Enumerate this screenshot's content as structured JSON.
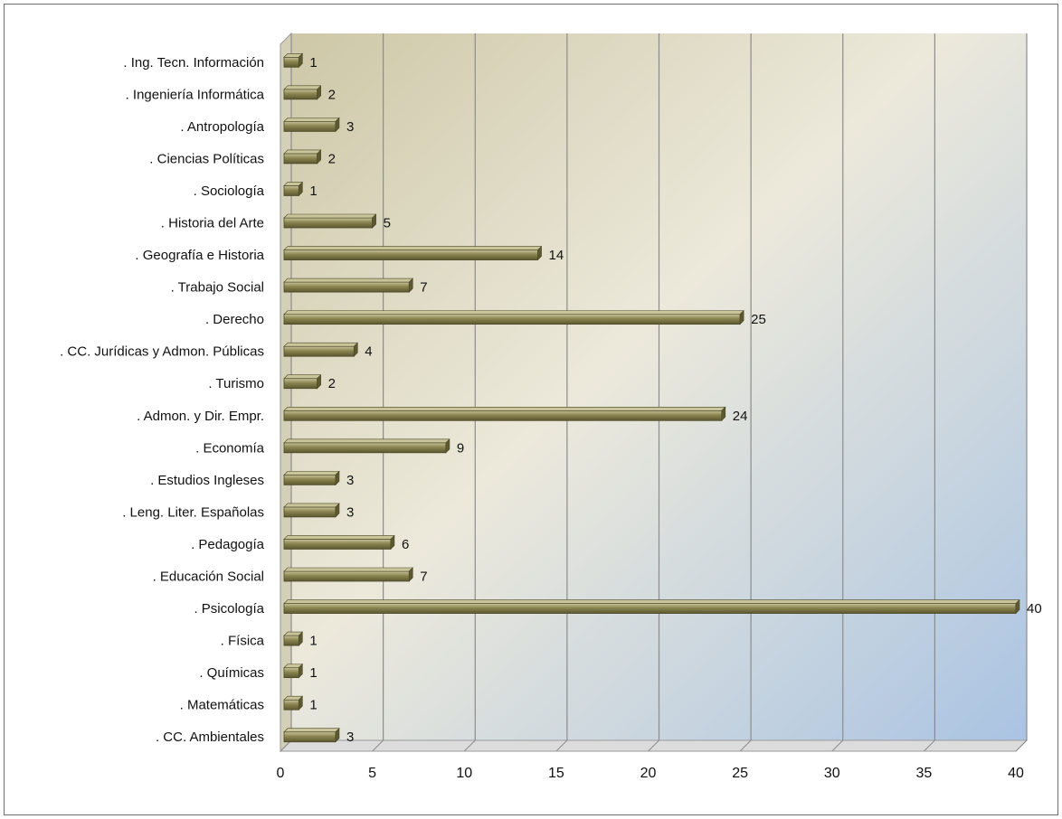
{
  "chart_data": {
    "type": "bar",
    "orientation": "horizontal",
    "title": "",
    "xlabel": "",
    "ylabel": "",
    "xlim": [
      0,
      40
    ],
    "x_ticks": [
      "0",
      "5",
      "10",
      "15",
      "20",
      "25",
      "30",
      "35",
      "40"
    ],
    "grid": true,
    "legend": "none",
    "categories": [
      ". Ing. Tecn. Información",
      ". Ingeniería Informática",
      ". Antropología",
      ". Ciencias Políticas",
      ". Sociología",
      ". Historia del Arte",
      ". Geografía e Historia",
      ". Trabajo Social",
      ". Derecho",
      ". CC. Jurídicas y Admon. Públicas",
      ". Turismo",
      ". Admon. y Dir. Empr.",
      ". Economía",
      ". Estudios Ingleses",
      ". Leng. Liter. Españolas",
      ". Pedagogía",
      ". Educación Social",
      ". Psicología",
      ". Física",
      ". Químicas",
      ". Matemáticas",
      ". CC. Ambientales"
    ],
    "values": [
      1,
      2,
      3,
      2,
      1,
      5,
      14,
      7,
      25,
      4,
      2,
      24,
      9,
      3,
      3,
      6,
      7,
      40,
      1,
      1,
      1,
      3
    ],
    "colors": {
      "bar": "#8a8450",
      "bar_light": "#c9c49a",
      "bar_dark": "#5c5830",
      "plot_bg_left": "#cdc7a6",
      "plot_bg_mid": "#ece9db",
      "plot_bg_right": "#a9c3e3",
      "gridline": "#8c8c8c"
    }
  }
}
